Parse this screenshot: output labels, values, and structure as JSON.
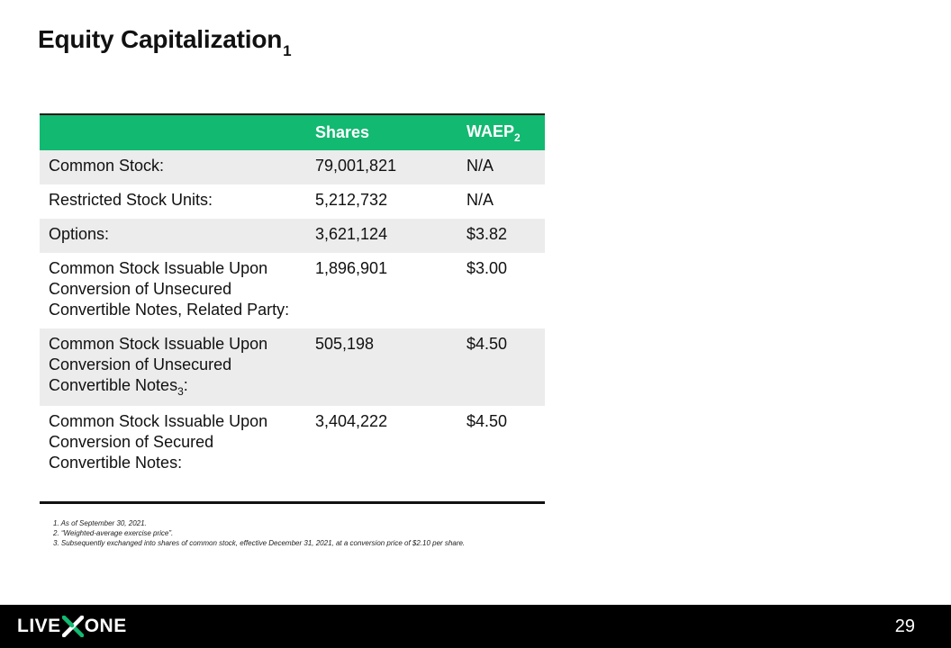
{
  "title": {
    "text": "Equity Capitalization",
    "sup": "1"
  },
  "table": {
    "headers": {
      "col1": "",
      "shares": "Shares",
      "waep": "WAEP",
      "waep_sub": "2"
    },
    "rows": [
      {
        "label": "Common Stock:",
        "label_sub": "",
        "label_end": "",
        "shares": "79,001,821",
        "waep": "N/A"
      },
      {
        "label": "Restricted Stock Units:",
        "label_sub": "",
        "label_end": "",
        "shares": "5,212,732",
        "waep": "N/A"
      },
      {
        "label": "Options:",
        "label_sub": "",
        "label_end": "",
        "shares": "3,621,124",
        "waep": "$3.82"
      },
      {
        "label": "Common Stock Issuable Upon Conversion of Unsecured Convertible Notes, Related Party:",
        "label_sub": "",
        "label_end": "",
        "shares": "1,896,901",
        "waep": "$3.00"
      },
      {
        "label": "Common Stock Issuable Upon Conversion of Unsecured Convertible Notes",
        "label_sub": "3",
        "label_end": ":",
        "shares": "505,198",
        "waep": "$4.50"
      },
      {
        "label": "Common Stock Issuable Upon Conversion of Secured Convertible Notes:",
        "label_sub": "",
        "label_end": "",
        "shares": "3,404,222",
        "waep": "$4.50"
      }
    ]
  },
  "footnotes": [
    "1. As of September 30, 2021.",
    "2. “Weighted-average exercise price”.",
    "3. Subsequently exchanged into shares of common stock, effective December 31, 2021, at a conversion price of $2.10 per share."
  ],
  "footer": {
    "logo_left": "LIVE",
    "logo_right": "ONE",
    "logo_icon": "x-mark-icon",
    "page_number": "29",
    "colors": {
      "accent": "#12b971",
      "footer_bg": "#000000"
    }
  }
}
